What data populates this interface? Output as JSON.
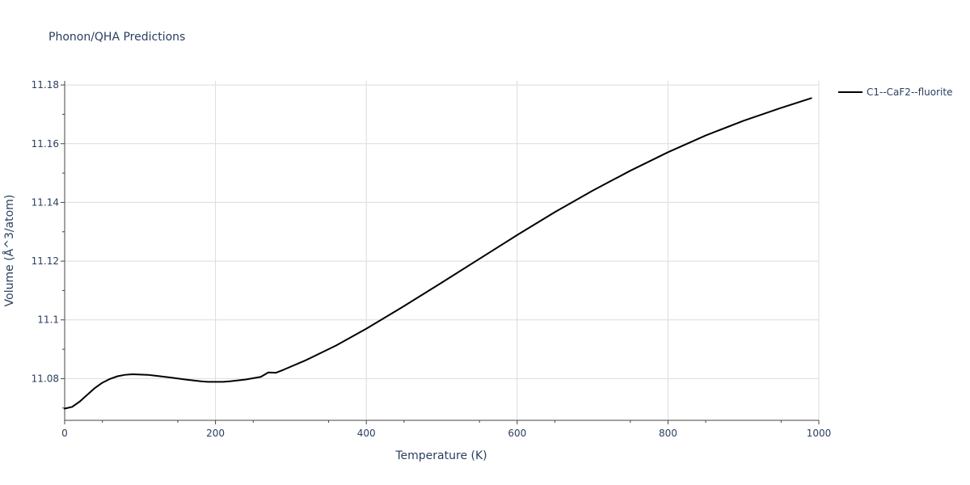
{
  "chart_data": {
    "type": "line",
    "title": "Phonon/QHA Predictions",
    "xlabel": "Temperature (K)",
    "ylabel": "Volume (Å^3/atom)",
    "xlim": [
      0,
      1000
    ],
    "ylim": [
      11.0658,
      11.1814
    ],
    "x_ticks": [
      0,
      200,
      400,
      600,
      800,
      1000
    ],
    "x_tick_labels": [
      "0",
      "200",
      "400",
      "600",
      "800",
      "1000"
    ],
    "y_ticks": [
      11.08,
      11.1,
      11.12,
      11.14,
      11.16,
      11.18
    ],
    "y_tick_labels": [
      "11.08",
      "11.1",
      "11.12",
      "11.14",
      "11.16",
      "11.18"
    ],
    "grid": true,
    "legend_position": "top-right",
    "series": [
      {
        "name": "C1--CaF2--fluorite",
        "color": "#000000",
        "x": [
          0,
          10,
          20,
          30,
          40,
          50,
          60,
          70,
          80,
          90,
          100,
          110,
          120,
          140,
          160,
          180,
          190,
          200,
          210,
          220,
          240,
          260,
          270,
          280,
          290,
          320,
          360,
          400,
          450,
          500,
          550,
          600,
          650,
          700,
          750,
          800,
          850,
          900,
          950,
          990
        ],
        "y": [
          11.0698,
          11.0704,
          11.0722,
          11.0745,
          11.0768,
          11.0786,
          11.0799,
          11.0808,
          11.0813,
          11.0815,
          11.0814,
          11.0813,
          11.081,
          11.0804,
          11.0797,
          11.0791,
          11.0789,
          11.0789,
          11.0789,
          11.0791,
          11.0797,
          11.0806,
          11.0821,
          11.082,
          11.083,
          11.0863,
          11.0913,
          11.097,
          11.1047,
          11.1127,
          11.1208,
          11.1289,
          11.1367,
          11.144,
          11.1508,
          11.1571,
          11.1628,
          11.1678,
          11.1722,
          11.1755
        ]
      }
    ]
  }
}
